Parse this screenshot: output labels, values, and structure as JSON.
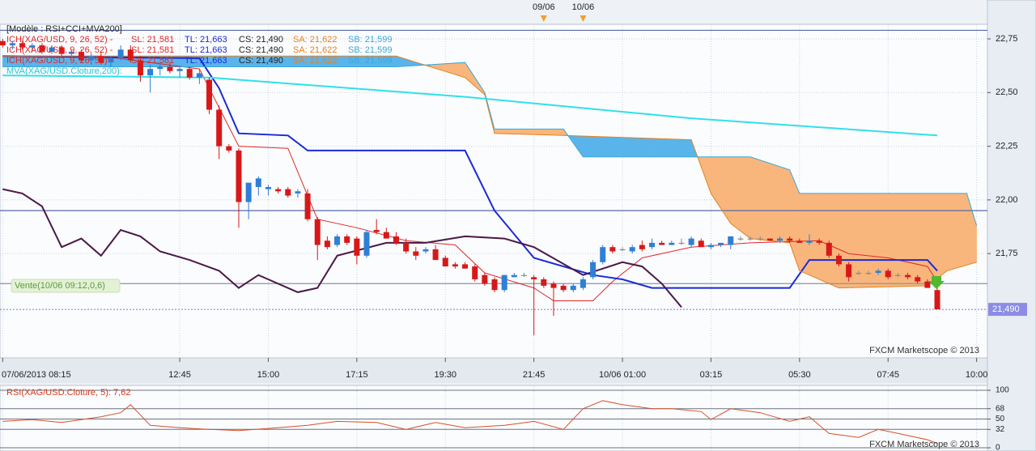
{
  "chart_data": [
    {
      "type": "candlestick",
      "legend_header": "[Modèle : RSI+CCI+MVA200]",
      "indicator_label": "ICH(XAG/USD, 9, 26, 52) -",
      "up_color": "#2f7fd6",
      "down_color": "#d81818",
      "flat_color": "#8a8a8a",
      "open": [
        22.74,
        22.72,
        22.73,
        22.71,
        22.72,
        22.69,
        22.71,
        22.68,
        22.69,
        22.65,
        22.67,
        22.64,
        22.66,
        22.7,
        22.65,
        22.58,
        22.61,
        22.62,
        22.6,
        22.61,
        22.57,
        22.56,
        22.42,
        22.25,
        22.23,
        21.99,
        22.06,
        22.05,
        22.05,
        22.05,
        22.03,
        22.03,
        21.91,
        21.81,
        21.79,
        21.83,
        21.82,
        21.74,
        21.86,
        21.85,
        21.83,
        21.8,
        21.76,
        21.76,
        21.77,
        21.73,
        21.7,
        21.7,
        21.69,
        21.65,
        21.63,
        21.58,
        21.64,
        21.65,
        21.64,
        21.63,
        21.61,
        21.6,
        21.58,
        21.59,
        21.64,
        21.71,
        21.78,
        21.77,
        21.76,
        21.79,
        21.78,
        21.8,
        21.79,
        21.8,
        21.79,
        21.81,
        21.78,
        21.79,
        21.79,
        21.82,
        21.82,
        21.82,
        21.82,
        21.81,
        21.82,
        21.81,
        21.8,
        21.81,
        21.8,
        21.74,
        21.7,
        21.66,
        21.66,
        21.66,
        21.67,
        21.65,
        21.65,
        21.64,
        21.62,
        21.58
      ],
      "high": [
        22.75,
        22.74,
        22.74,
        22.73,
        22.73,
        22.72,
        22.72,
        22.7,
        22.7,
        22.68,
        22.69,
        22.67,
        22.72,
        22.72,
        22.67,
        22.63,
        22.64,
        22.64,
        22.62,
        22.62,
        22.61,
        22.57,
        22.44,
        22.26,
        22.24,
        22.08,
        22.11,
        22.07,
        22.06,
        22.06,
        22.05,
        22.05,
        21.92,
        21.83,
        21.84,
        21.84,
        21.83,
        21.86,
        21.91,
        21.87,
        21.85,
        21.82,
        21.78,
        21.78,
        21.79,
        21.74,
        21.71,
        21.71,
        21.7,
        21.66,
        21.64,
        21.65,
        21.66,
        21.66,
        21.65,
        21.64,
        21.62,
        21.61,
        21.61,
        21.64,
        21.72,
        21.79,
        21.79,
        21.78,
        21.79,
        21.81,
        21.82,
        21.81,
        21.81,
        21.82,
        21.83,
        21.82,
        21.8,
        21.8,
        21.83,
        21.83,
        21.83,
        21.83,
        21.82,
        21.83,
        21.83,
        21.82,
        21.84,
        21.82,
        21.81,
        21.75,
        21.71,
        21.67,
        21.67,
        21.68,
        21.68,
        21.66,
        21.66,
        21.65,
        21.63,
        21.59
      ],
      "low": [
        22.71,
        22.7,
        22.7,
        22.69,
        22.68,
        22.68,
        22.67,
        22.66,
        22.64,
        22.63,
        22.63,
        22.62,
        22.65,
        22.64,
        22.55,
        22.5,
        22.58,
        22.59,
        22.57,
        22.56,
        22.54,
        22.4,
        22.19,
        22.22,
        21.87,
        21.91,
        22.02,
        22.02,
        22.03,
        22.01,
        22.01,
        21.9,
        21.72,
        21.77,
        21.78,
        21.79,
        21.7,
        21.73,
        21.84,
        21.82,
        21.79,
        21.75,
        21.72,
        21.75,
        21.72,
        21.69,
        21.68,
        21.68,
        21.62,
        21.6,
        21.57,
        21.57,
        21.64,
        21.64,
        21.37,
        21.59,
        21.46,
        21.57,
        21.57,
        21.58,
        21.63,
        21.7,
        21.75,
        21.76,
        21.75,
        21.76,
        21.77,
        21.79,
        21.79,
        21.79,
        21.78,
        21.78,
        21.77,
        21.78,
        21.77,
        21.81,
        21.81,
        21.81,
        21.81,
        21.8,
        21.8,
        21.8,
        21.79,
        21.79,
        21.73,
        21.69,
        21.62,
        21.65,
        21.65,
        21.65,
        21.63,
        21.64,
        21.63,
        21.61,
        21.59,
        21.49
      ],
      "close": [
        22.72,
        22.73,
        22.71,
        22.72,
        22.69,
        22.71,
        22.68,
        22.69,
        22.65,
        22.67,
        22.64,
        22.66,
        22.7,
        22.65,
        22.58,
        22.61,
        22.62,
        22.6,
        22.61,
        22.57,
        22.59,
        22.42,
        22.25,
        22.23,
        21.99,
        22.08,
        22.1,
        22.06,
        22.04,
        22.02,
        22.04,
        21.91,
        21.79,
        21.78,
        21.83,
        21.8,
        21.74,
        21.85,
        21.85,
        21.82,
        21.8,
        21.76,
        21.74,
        21.77,
        21.72,
        21.69,
        21.69,
        21.68,
        21.63,
        21.61,
        21.58,
        21.65,
        21.65,
        21.65,
        21.63,
        21.6,
        21.59,
        21.58,
        21.6,
        21.63,
        21.71,
        21.78,
        21.76,
        21.77,
        21.78,
        21.77,
        21.8,
        21.79,
        21.8,
        21.8,
        21.82,
        21.78,
        21.79,
        21.8,
        21.83,
        21.82,
        21.82,
        21.82,
        21.81,
        21.82,
        21.81,
        21.8,
        21.81,
        21.8,
        21.74,
        21.7,
        21.64,
        21.66,
        21.66,
        21.67,
        21.64,
        21.65,
        21.64,
        21.62,
        21.59,
        21.49
      ],
      "lines": [
        {
          "name": "SL: 21,581",
          "color": "#e02828",
          "line_width": 1,
          "x": [
            0,
            10,
            20,
            24,
            29,
            32,
            36,
            41,
            46,
            49,
            54,
            56,
            60,
            62,
            65,
            70,
            76,
            83,
            86,
            90,
            94,
            95
          ],
          "values": [
            22.67,
            22.67,
            22.61,
            22.25,
            22.24,
            21.91,
            21.87,
            21.81,
            21.79,
            21.66,
            21.59,
            21.53,
            21.53,
            21.62,
            21.73,
            21.78,
            21.8,
            21.81,
            21.75,
            21.73,
            21.69,
            21.62
          ]
        },
        {
          "name": "TL: 21,663",
          "color": "#1a2ad8",
          "line_width": 2,
          "x": [
            0,
            20,
            22,
            24,
            29,
            31,
            47,
            50,
            54,
            60,
            63,
            66,
            80,
            82,
            94,
            95
          ],
          "values": [
            22.67,
            22.66,
            22.52,
            22.31,
            22.3,
            22.23,
            22.23,
            21.95,
            21.73,
            21.65,
            21.63,
            21.59,
            21.59,
            21.72,
            21.72,
            21.67
          ]
        },
        {
          "name": "CS: 21,490",
          "color": "#4a1848",
          "line_width": 2,
          "x": [
            0,
            2,
            4,
            6,
            8,
            10,
            12,
            14,
            16,
            19,
            22,
            24,
            26,
            30,
            32,
            34,
            39,
            43,
            47,
            51,
            54,
            59,
            63,
            65,
            67,
            69
          ],
          "values": [
            22.05,
            22.03,
            21.97,
            21.78,
            21.82,
            21.74,
            21.86,
            21.83,
            21.76,
            21.72,
            21.67,
            21.59,
            21.65,
            21.57,
            21.59,
            21.74,
            21.8,
            21.8,
            21.83,
            21.82,
            21.78,
            21.65,
            21.71,
            21.69,
            21.61,
            21.5
          ]
        },
        {
          "name": "SA: 21,622",
          "color": "#e8801e",
          "line_width": 1,
          "x": [
            0,
            40,
            47,
            49,
            50,
            57,
            70,
            72,
            74,
            76,
            80,
            81,
            85,
            94,
            96,
            99
          ],
          "values": [
            22.67,
            22.67,
            22.57,
            22.49,
            22.31,
            22.3,
            22.28,
            22.03,
            21.89,
            21.82,
            21.8,
            21.67,
            21.59,
            21.6,
            21.67,
            21.71
          ]
        },
        {
          "name": "SB: 21,599",
          "color": "#3aa8d8",
          "line_width": 1,
          "x": [
            0,
            40,
            47,
            49,
            50,
            57,
            59,
            76,
            80,
            81,
            98,
            99
          ],
          "values": [
            22.62,
            22.62,
            22.64,
            22.5,
            22.33,
            22.33,
            22.2,
            22.2,
            22.14,
            22.03,
            22.03,
            21.88
          ]
        },
        {
          "name": "MVA(XAG/USD.Cloture,200):",
          "color": "#30e0e8",
          "line_width": 2,
          "x": [
            0,
            21,
            47,
            70,
            95
          ],
          "values": [
            22.58,
            22.57,
            22.48,
            22.38,
            22.3
          ]
        }
      ],
      "cloud_colors": [
        "#5ab4ec",
        "#f8b67c"
      ],
      "levels": [
        22.79,
        21.95,
        21.61
      ],
      "last_price": {
        "value": 21.49,
        "label": "21,490"
      },
      "signal": "Vente(10/06 09:12,0,6)",
      "watermark": "FXCM Marketscope © 2013",
      "date_markers": [
        {
          "x": 55,
          "label": "09/06"
        },
        {
          "x": 59,
          "label": "10/06"
        }
      ],
      "xlim": [
        -0.27,
        100.1
      ],
      "xticks": [
        {
          "value": 0,
          "label": "07/06/2013 08:15"
        },
        {
          "value": 18,
          "label": "12:45"
        },
        {
          "value": 27,
          "label": "15:00"
        },
        {
          "value": 36,
          "label": "17:15"
        },
        {
          "value": 45,
          "label": "19:30"
        },
        {
          "value": 54,
          "label": "21:45"
        },
        {
          "value": 63,
          "label": "10/06 01:00"
        },
        {
          "value": 72,
          "label": "03:15"
        },
        {
          "value": 81,
          "label": "05:30"
        },
        {
          "value": 90,
          "label": "07:45"
        },
        {
          "value": 99,
          "label": "10:00"
        }
      ],
      "ylim": [
        21.264,
        22.818
      ],
      "yticks": [
        {
          "value": 22.75,
          "label": "22,75"
        },
        {
          "value": 22.5,
          "label": "22,50"
        },
        {
          "value": 22.25,
          "label": "22,25"
        },
        {
          "value": 22,
          "label": "22,00"
        },
        {
          "value": 21.75,
          "label": "21,75"
        }
      ],
      "grid": true
    },
    {
      "type": "line",
      "title": "RSI(XAG/USD.Cloture, 5): 7,62",
      "series": [
        {
          "name": "RSI",
          "color": "#d8502a",
          "x": [
            0,
            3,
            6,
            10,
            12,
            13,
            15,
            18,
            21,
            24,
            28,
            31,
            34,
            38,
            41,
            44,
            47,
            51,
            54,
            57,
            59,
            61,
            63,
            66,
            68,
            71,
            72,
            74,
            77,
            80,
            82,
            84,
            87,
            89,
            91,
            94,
            95
          ],
          "values": [
            46,
            49,
            44,
            54,
            61,
            75,
            39,
            35,
            32,
            30,
            35,
            39,
            46,
            44,
            32,
            44,
            35,
            39,
            46,
            32,
            68,
            82,
            75,
            68,
            68,
            63,
            49,
            68,
            61,
            46,
            54,
            25,
            18,
            32,
            25,
            14,
            7.62
          ]
        }
      ],
      "watermark": "FXCM Marketscope © 2013",
      "xlim": [
        -0.27,
        100.1
      ],
      "ylim": [
        -5.6,
        108.5
      ],
      "yticks": [
        100,
        68,
        50,
        32,
        0
      ],
      "grid": true
    }
  ]
}
